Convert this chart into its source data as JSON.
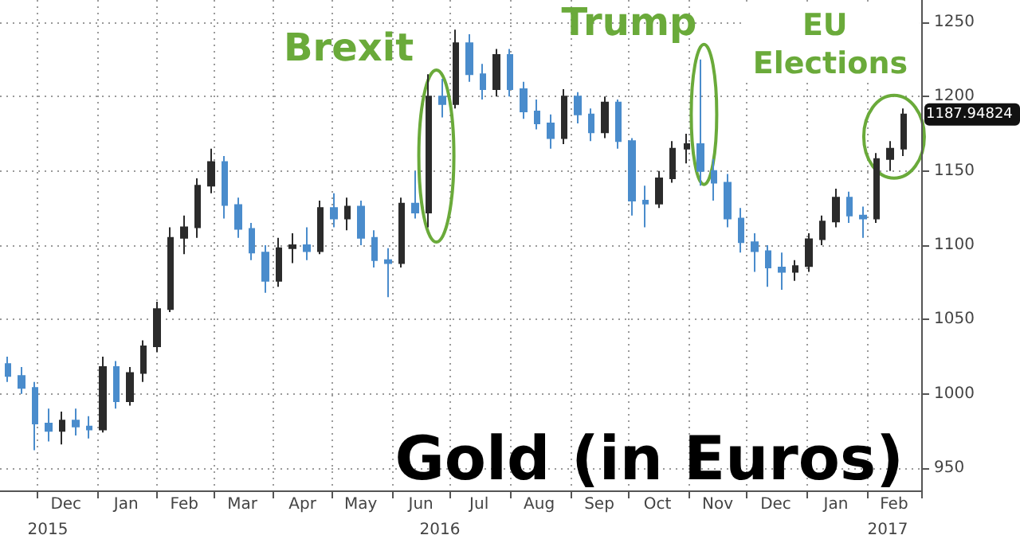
{
  "chart_data": {
    "type": "candlestick",
    "title": "Gold (in Euros)",
    "x": [
      "2015-11-16",
      "2015-11-23",
      "2015-11-30",
      "2015-12-07",
      "2015-12-14",
      "2015-12-21",
      "2015-12-28",
      "2016-01-04",
      "2016-01-11",
      "2016-01-18",
      "2016-01-25",
      "2016-02-01",
      "2016-02-08",
      "2016-02-15",
      "2016-02-22",
      "2016-02-29",
      "2016-03-07",
      "2016-03-14",
      "2016-03-21",
      "2016-03-28",
      "2016-04-04",
      "2016-04-11",
      "2016-04-18",
      "2016-04-25",
      "2016-05-02",
      "2016-05-09",
      "2016-05-16",
      "2016-05-23",
      "2016-05-30",
      "2016-06-06",
      "2016-06-13",
      "2016-06-20",
      "2016-06-27",
      "2016-07-04",
      "2016-07-11",
      "2016-07-18",
      "2016-07-25",
      "2016-08-01",
      "2016-08-08",
      "2016-08-15",
      "2016-08-22",
      "2016-08-29",
      "2016-09-05",
      "2016-09-12",
      "2016-09-19",
      "2016-09-26",
      "2016-10-03",
      "2016-10-10",
      "2016-10-17",
      "2016-10-24",
      "2016-10-31",
      "2016-11-07",
      "2016-11-14",
      "2016-11-21",
      "2016-11-28",
      "2016-12-05",
      "2016-12-12",
      "2016-12-19",
      "2016-12-26",
      "2017-01-02",
      "2017-01-09",
      "2017-01-16",
      "2017-01-23",
      "2017-01-30",
      "2017-02-06",
      "2017-02-13",
      "2017-02-20"
    ],
    "ohlc": [
      [
        1020,
        1025,
        1008,
        1012
      ],
      [
        1012,
        1018,
        1000,
        1004
      ],
      [
        1004,
        1008,
        962,
        980
      ],
      [
        980,
        990,
        968,
        975
      ],
      [
        975,
        988,
        966,
        982
      ],
      [
        982,
        990,
        972,
        978
      ],
      [
        978,
        985,
        970,
        976
      ],
      [
        976,
        1025,
        974,
        1018
      ],
      [
        1018,
        1022,
        990,
        995
      ],
      [
        995,
        1018,
        992,
        1014
      ],
      [
        1014,
        1036,
        1008,
        1032
      ],
      [
        1032,
        1062,
        1028,
        1057
      ],
      [
        1057,
        1112,
        1055,
        1105
      ],
      [
        1105,
        1120,
        1094,
        1112
      ],
      [
        1112,
        1145,
        1105,
        1140
      ],
      [
        1140,
        1165,
        1135,
        1156
      ],
      [
        1156,
        1160,
        1118,
        1127
      ],
      [
        1127,
        1132,
        1105,
        1111
      ],
      [
        1111,
        1115,
        1090,
        1095
      ],
      [
        1095,
        1100,
        1068,
        1076
      ],
      [
        1076,
        1105,
        1072,
        1098
      ],
      [
        1098,
        1108,
        1088,
        1100
      ],
      [
        1100,
        1112,
        1090,
        1096
      ],
      [
        1096,
        1130,
        1094,
        1125
      ],
      [
        1125,
        1135,
        1112,
        1118
      ],
      [
        1118,
        1132,
        1110,
        1126
      ],
      [
        1126,
        1130,
        1100,
        1105
      ],
      [
        1105,
        1110,
        1085,
        1090
      ],
      [
        1090,
        1098,
        1065,
        1088
      ],
      [
        1088,
        1132,
        1085,
        1128
      ],
      [
        1128,
        1150,
        1118,
        1122
      ],
      [
        1122,
        1215,
        1112,
        1200
      ],
      [
        1200,
        1212,
        1186,
        1195
      ],
      [
        1195,
        1245,
        1192,
        1236
      ],
      [
        1236,
        1242,
        1210,
        1215
      ],
      [
        1215,
        1222,
        1198,
        1205
      ],
      [
        1205,
        1232,
        1200,
        1228
      ],
      [
        1228,
        1232,
        1200,
        1205
      ],
      [
        1205,
        1210,
        1185,
        1190
      ],
      [
        1190,
        1198,
        1178,
        1182
      ],
      [
        1182,
        1188,
        1165,
        1172
      ],
      [
        1172,
        1205,
        1168,
        1200
      ],
      [
        1200,
        1203,
        1182,
        1188
      ],
      [
        1188,
        1192,
        1170,
        1176
      ],
      [
        1176,
        1200,
        1172,
        1196
      ],
      [
        1196,
        1198,
        1165,
        1170
      ],
      [
        1170,
        1172,
        1120,
        1130
      ],
      [
        1130,
        1140,
        1112,
        1128
      ],
      [
        1128,
        1150,
        1125,
        1145
      ],
      [
        1145,
        1170,
        1142,
        1165
      ],
      [
        1165,
        1175,
        1155,
        1168
      ],
      [
        1168,
        1225,
        1140,
        1150
      ],
      [
        1150,
        1158,
        1130,
        1142
      ],
      [
        1142,
        1148,
        1112,
        1118
      ],
      [
        1118,
        1125,
        1095,
        1102
      ],
      [
        1102,
        1108,
        1082,
        1096
      ],
      [
        1096,
        1100,
        1072,
        1085
      ],
      [
        1085,
        1095,
        1070,
        1082
      ],
      [
        1082,
        1090,
        1076,
        1086
      ],
      [
        1086,
        1108,
        1082,
        1104
      ],
      [
        1104,
        1120,
        1100,
        1116
      ],
      [
        1116,
        1138,
        1112,
        1132
      ],
      [
        1132,
        1136,
        1115,
        1120
      ],
      [
        1120,
        1126,
        1105,
        1118
      ],
      [
        1118,
        1162,
        1115,
        1158
      ],
      [
        1158,
        1170,
        1150,
        1165
      ],
      [
        1165,
        1192,
        1160,
        1188
      ]
    ],
    "colors": [
      "#4a8ccc",
      "#4a8ccc",
      "#4a8ccc",
      "#4a8ccc",
      "#2b2b2b",
      "#4a8ccc",
      "#4a8ccc",
      "#2b2b2b",
      "#4a8ccc",
      "#2b2b2b",
      "#2b2b2b",
      "#2b2b2b",
      "#2b2b2b",
      "#2b2b2b",
      "#2b2b2b",
      "#2b2b2b",
      "#4a8ccc",
      "#4a8ccc",
      "#4a8ccc",
      "#4a8ccc",
      "#2b2b2b",
      "#2b2b2b",
      "#4a8ccc",
      "#2b2b2b",
      "#4a8ccc",
      "#2b2b2b",
      "#4a8ccc",
      "#4a8ccc",
      "#4a8ccc",
      "#2b2b2b",
      "#4a8ccc",
      "#2b2b2b",
      "#4a8ccc",
      "#2b2b2b",
      "#4a8ccc",
      "#4a8ccc",
      "#2b2b2b",
      "#4a8ccc",
      "#4a8ccc",
      "#4a8ccc",
      "#4a8ccc",
      "#2b2b2b",
      "#4a8ccc",
      "#4a8ccc",
      "#2b2b2b",
      "#4a8ccc",
      "#4a8ccc",
      "#4a8ccc",
      "#2b2b2b",
      "#2b2b2b",
      "#2b2b2b",
      "#4a8ccc",
      "#4a8ccc",
      "#4a8ccc",
      "#4a8ccc",
      "#4a8ccc",
      "#4a8ccc",
      "#4a8ccc",
      "#2b2b2b",
      "#2b2b2b",
      "#2b2b2b",
      "#2b2b2b",
      "#4a8ccc",
      "#4a8ccc",
      "#2b2b2b",
      "#2b2b2b",
      "#2b2b2b"
    ],
    "xlim": [
      "2015-11-12",
      "2017-03-01"
    ],
    "xticks": [
      {
        "value": "2015-12-01",
        "label": null
      },
      {
        "value": "2015-12-16",
        "label": "Dec"
      },
      {
        "value": "2016-01-01",
        "label": null
      },
      {
        "value": "2016-01-16",
        "label": "Jan"
      },
      {
        "value": "2016-02-01",
        "label": null
      },
      {
        "value": "2016-02-15",
        "label": "Feb"
      },
      {
        "value": "2016-03-01",
        "label": null
      },
      {
        "value": "2016-03-16",
        "label": "Mar"
      },
      {
        "value": "2016-04-01",
        "label": null
      },
      {
        "value": "2016-04-16",
        "label": "Apr"
      },
      {
        "value": "2016-05-01",
        "label": null
      },
      {
        "value": "2016-05-16",
        "label": "May"
      },
      {
        "value": "2016-06-01",
        "label": null
      },
      {
        "value": "2016-06-16",
        "label": "Jun"
      },
      {
        "value": "2016-07-01",
        "label": null
      },
      {
        "value": "2016-07-16",
        "label": "Jul"
      },
      {
        "value": "2016-08-01",
        "label": null
      },
      {
        "value": "2016-08-16",
        "label": "Aug"
      },
      {
        "value": "2016-09-01",
        "label": null
      },
      {
        "value": "2016-09-16",
        "label": "Sep"
      },
      {
        "value": "2016-10-01",
        "label": null
      },
      {
        "value": "2016-10-16",
        "label": "Oct"
      },
      {
        "value": "2016-11-01",
        "label": null
      },
      {
        "value": "2016-11-16",
        "label": "Nov"
      },
      {
        "value": "2016-12-01",
        "label": null
      },
      {
        "value": "2016-12-16",
        "label": "Dec"
      },
      {
        "value": "2017-01-01",
        "label": null
      },
      {
        "value": "2017-01-16",
        "label": "Jan"
      },
      {
        "value": "2017-02-01",
        "label": null
      },
      {
        "value": "2017-02-15",
        "label": "Feb"
      },
      {
        "value": "2017-03-01",
        "label": null
      }
    ],
    "ylim": [
      935,
      1265
    ],
    "yticks": [
      950,
      1000,
      1050,
      1100,
      1150,
      1200,
      1250
    ],
    "grid": true,
    "annotations": [
      {
        "text": "Brexit",
        "x": "2016-06-24",
        "y": 1160
      },
      {
        "text": "Trump",
        "x": "2016-11-09",
        "y": 1188
      },
      {
        "text": "EU Elections",
        "x": "2017-02-15",
        "y": 1173
      },
      {
        "text": "1187.94824",
        "x": "2017-02-24",
        "y": 1187.94824
      },
      "2015",
      "2016",
      "2017"
    ]
  }
}
